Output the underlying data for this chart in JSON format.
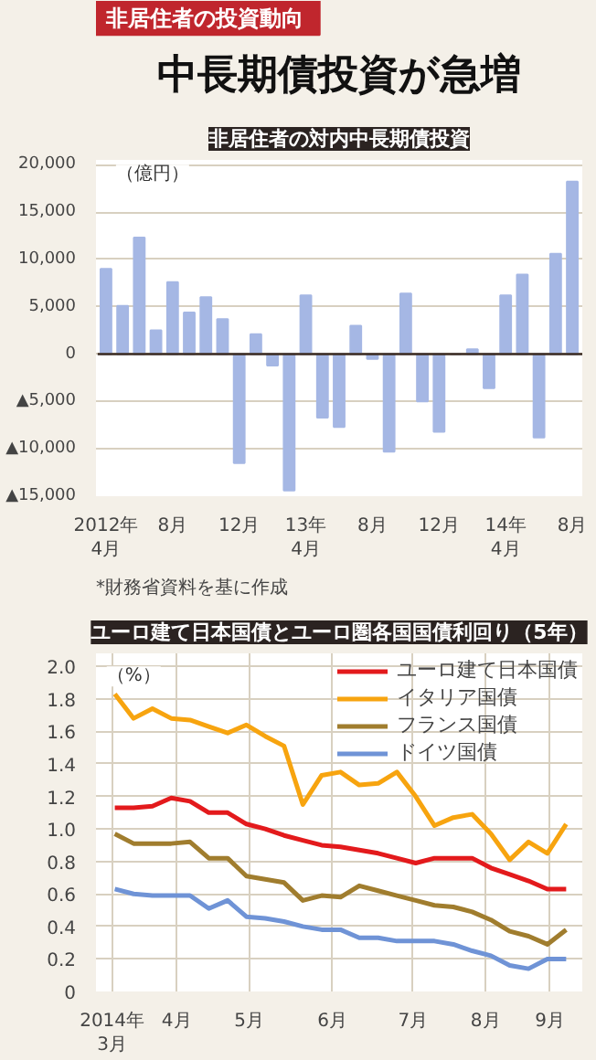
{
  "chart_data": [
    {
      "type": "other",
      "subtitle": "非居住者の投資動向",
      "title": "中長期債投資が急増"
    },
    {
      "type": "bar",
      "title": "非居住者の対内中長期債投資",
      "ylabel": "（億円）",
      "color": "#a5b7e4",
      "categories": [
        "2012年\n4月",
        null,
        null,
        null,
        "8月",
        null,
        null,
        null,
        "12月",
        null,
        null,
        null,
        "13年\n4月",
        null,
        null,
        null,
        "8月",
        null,
        null,
        null,
        "12月",
        null,
        null,
        null,
        "14年\n4月",
        null,
        null,
        null,
        "8月"
      ],
      "values": [
        9000,
        5100,
        12300,
        2500,
        7600,
        4400,
        6000,
        3700,
        -11500,
        2100,
        -1200,
        -14400,
        6200,
        -6700,
        -7700,
        3000,
        -500,
        -10300,
        6400,
        -5000,
        -8200,
        0,
        500,
        -3600,
        6200,
        8400,
        -8800,
        10600,
        18200
      ],
      "ylim": [
        -15000,
        20500
      ],
      "yticks": [
        {
          "value": -15000,
          "label": "▲15,000"
        },
        {
          "value": -10000,
          "label": "▲10,000"
        },
        {
          "value": -5000,
          "label": "▲5,000"
        },
        0,
        {
          "value": 5000,
          "label": "5,000"
        },
        {
          "value": 10000,
          "label": "10,000"
        },
        {
          "value": 15000,
          "label": "15,000"
        },
        {
          "value": 20000,
          "label": "20,000"
        }
      ],
      "grid": "y",
      "annotations": [
        "*財務省資料を基に作成"
      ]
    },
    {
      "type": "line",
      "title": "ユーロ建て日本国債とユーロ圏各国国債利回り（5年）",
      "ylabel": "（%）",
      "x": [
        "2014-03-21",
        "2014-03-28",
        "2014-04-04",
        "2014-04-11",
        "2014-04-18",
        "2014-04-25",
        "2014-05-02",
        "2014-05-09",
        "2014-05-16",
        "2014-05-23",
        "2014-05-30",
        "2014-06-06",
        "2014-06-13",
        "2014-06-20",
        "2014-06-27",
        "2014-07-04",
        "2014-07-11",
        "2014-07-18",
        "2014-07-25",
        "2014-08-01",
        "2014-08-08",
        "2014-08-15",
        "2014-08-22",
        "2014-08-29",
        "2014-09-05"
      ],
      "series": [
        {
          "name": "ユーロ建て日本国債",
          "color": "#e31a1c",
          "values": [
            1.13,
            1.13,
            1.14,
            1.19,
            1.17,
            1.1,
            1.1,
            1.03,
            1.0,
            0.96,
            0.93,
            0.9,
            0.89,
            0.87,
            0.85,
            0.82,
            0.79,
            0.82,
            0.82,
            0.82,
            0.76,
            0.72,
            0.68,
            0.63,
            0.63
          ]
        },
        {
          "name": "イタリア国債",
          "color": "#f7a40f",
          "values": [
            1.83,
            1.68,
            1.74,
            1.68,
            1.67,
            1.63,
            1.59,
            1.64,
            1.57,
            1.51,
            1.15,
            1.33,
            1.35,
            1.27,
            1.28,
            1.35,
            1.2,
            1.02,
            1.07,
            1.09,
            0.97,
            0.81,
            0.92,
            0.85,
            1.03
          ]
        },
        {
          "name": "フランス国債",
          "color": "#a07d2e",
          "values": [
            0.97,
            0.91,
            0.91,
            0.91,
            0.92,
            0.82,
            0.82,
            0.71,
            0.69,
            0.67,
            0.56,
            0.59,
            0.58,
            0.65,
            0.62,
            0.59,
            0.56,
            0.53,
            0.52,
            0.49,
            0.44,
            0.37,
            0.34,
            0.29,
            0.38
          ]
        },
        {
          "name": "ドイツ国債",
          "color": "#6f93d6",
          "values": [
            0.63,
            0.6,
            0.59,
            0.59,
            0.59,
            0.51,
            0.56,
            0.46,
            0.45,
            0.43,
            0.4,
            0.38,
            0.38,
            0.33,
            0.33,
            0.31,
            0.31,
            0.31,
            0.29,
            0.25,
            0.22,
            0.16,
            0.14,
            0.2,
            0.2
          ]
        }
      ],
      "xlim": [
        "2014-03-14",
        "2014-09-11"
      ],
      "xticks": [
        {
          "value": "2014-03-20",
          "label": "2014年\n3月"
        },
        {
          "value": "2014-04-13",
          "label": "4月"
        },
        {
          "value": "2014-05-10",
          "label": "5月"
        },
        {
          "value": "2014-06-10",
          "label": "6月"
        },
        {
          "value": "2014-07-10",
          "label": "7月"
        },
        {
          "value": "2014-08-06",
          "label": "8月"
        },
        {
          "value": "2014-08-30",
          "label": "9月"
        }
      ],
      "ylim": [
        0,
        2.08
      ],
      "yticks": [
        0,
        0.2,
        0.4,
        0.6,
        0.8,
        {
          "value": 1.0,
          "label": "1.0"
        },
        1.2,
        1.4,
        1.6,
        1.8,
        {
          "value": 2.0,
          "label": "2.0"
        }
      ],
      "grid": true,
      "legend": "top right",
      "marker": "none",
      "line_style": "solid"
    }
  ]
}
